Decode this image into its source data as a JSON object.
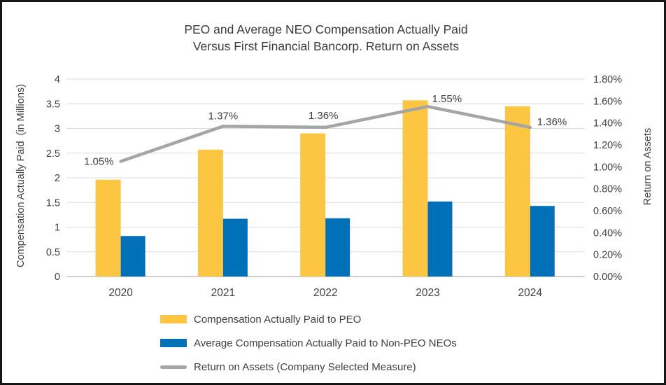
{
  "title": {
    "line1": "PEO and Average NEO Compensation Actually Paid",
    "line2": "Versus First Financial Bancorp. Return on Assets"
  },
  "chart_data": {
    "type": "combo-bar-line",
    "categories": [
      "2020",
      "2021",
      "2022",
      "2023",
      "2024"
    ],
    "series": [
      {
        "name": "Compensation Actually Paid to PEO",
        "type": "bar",
        "axis": "left",
        "color": "#FDC642",
        "values": [
          1.96,
          2.57,
          2.9,
          3.57,
          3.45
        ]
      },
      {
        "name": "Average Compensation Actually Paid to Non-PEO NEOs",
        "type": "bar",
        "axis": "left",
        "color": "#0071B9",
        "values": [
          0.82,
          1.17,
          1.18,
          1.52,
          1.43
        ]
      },
      {
        "name": "Return on Assets (Company Selected Measure)",
        "type": "line",
        "axis": "right",
        "color": "#A5A5A5",
        "values": [
          1.05,
          1.37,
          1.36,
          1.55,
          1.36
        ],
        "labels": [
          "1.05%",
          "1.37%",
          "1.36%",
          "1.55%",
          "1.36%"
        ]
      }
    ],
    "left_axis": {
      "title": "Compensation Actually Paid  (in Millions)",
      "min": 0,
      "max": 4,
      "step": 0.5,
      "ticks": [
        "0",
        "0.5",
        "1",
        "1.5",
        "2",
        "2.5",
        "3",
        "3.5",
        "4"
      ]
    },
    "right_axis": {
      "title": "Return on Assets",
      "min": 0,
      "max": 1.8,
      "step": 0.2,
      "ticks": [
        "0.00%",
        "0.20%",
        "0.40%",
        "0.60%",
        "0.80%",
        "1.00%",
        "1.20%",
        "1.40%",
        "1.60%",
        "1.80%"
      ]
    },
    "grid": true,
    "legend_position": "bottom-left",
    "grid_color": "#DCDCDC",
    "baseline_color": "#BFBFBF",
    "text_color": "#404040"
  }
}
